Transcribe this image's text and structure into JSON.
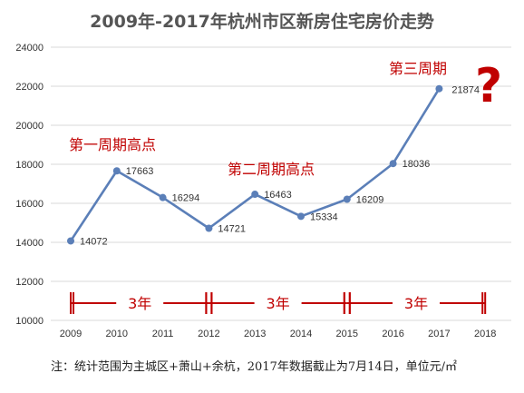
{
  "chart_data": {
    "type": "line",
    "title": "2009年-2017年杭州市区新房住宅房价走势",
    "categories": [
      "2009",
      "2010",
      "2011",
      "2012",
      "2013",
      "2014",
      "2015",
      "2016",
      "2017",
      "2018"
    ],
    "series": [
      {
        "values": [
          14072,
          17663,
          16294,
          14721,
          16463,
          15334,
          16209,
          18036,
          21874,
          null
        ]
      }
    ],
    "ylim": [
      10000,
      24000
    ],
    "yticks": [
      "10000",
      "12000",
      "14000",
      "16000",
      "18000",
      "20000",
      "22000",
      "24000"
    ],
    "grid": true,
    "colors": {
      "line": "#5b7fb8",
      "annotation": "#c00000",
      "grid": "#d9d9d9"
    },
    "annotations": [
      {
        "id": "peak1",
        "text": "第一周期高点"
      },
      {
        "id": "peak2",
        "text": "第二周期高点"
      },
      {
        "id": "cycle3",
        "text": "第三周期"
      },
      {
        "id": "qmark",
        "text": "?"
      }
    ],
    "ranges": [
      {
        "from": "2009",
        "to": "2012",
        "label": "3年"
      },
      {
        "from": "2012",
        "to": "2015",
        "label": "3年"
      },
      {
        "from": "2015",
        "to": "2018",
        "label": "3年"
      }
    ],
    "note": "注：统计范围为主城区+萧山+余杭，2017年数据截止为7月14日，单位元/㎡"
  }
}
